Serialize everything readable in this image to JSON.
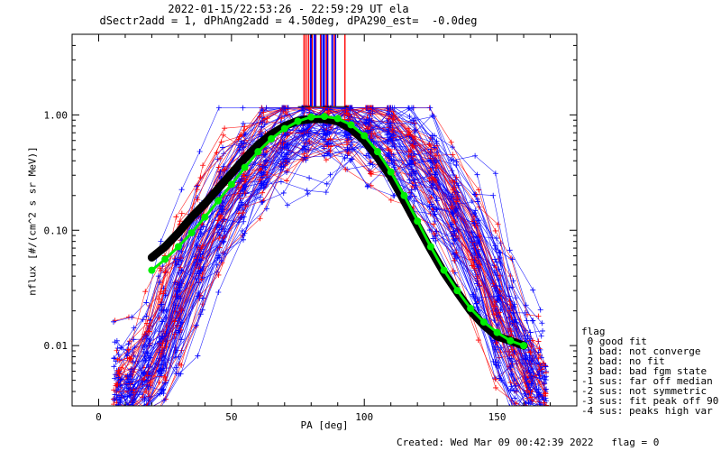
{
  "chart_data": {
    "type": "scatter",
    "title": "2022-01-15/22:53:26 - 22:59:29 UT ela",
    "subtitle": "dSectr2add = 1, dPhAng2add = 4.50deg, dPA290_est=  -0.0deg",
    "xlabel": "PA [deg]",
    "ylabel": "nflux [#/(cm^2 s sr MeV)]",
    "xlim": [
      -10,
      180
    ],
    "ylim": [
      0.003,
      5
    ],
    "yscale": "log",
    "x_ticks": [
      "0",
      "50",
      "100",
      "150"
    ],
    "y_ticks": [
      "0.01",
      "0.10",
      "1.00"
    ],
    "grid": false,
    "colors": {
      "bad_flux": "#ff0000",
      "good_flux": "#0000ff",
      "fit": "#00ee00",
      "median": "#000000"
    },
    "series": [
      {
        "color": "green",
        "x": [
          20,
          25,
          30,
          35,
          40,
          45,
          50,
          55,
          60,
          65,
          70,
          75,
          80,
          85,
          90,
          95,
          100,
          105,
          110,
          115,
          120,
          125,
          130,
          135,
          140,
          145,
          150,
          155,
          160
        ],
        "y": [
          0.045,
          0.056,
          0.072,
          0.095,
          0.13,
          0.18,
          0.25,
          0.35,
          0.48,
          0.62,
          0.76,
          0.88,
          0.96,
          0.97,
          0.93,
          0.82,
          0.66,
          0.48,
          0.32,
          0.2,
          0.12,
          0.072,
          0.045,
          0.03,
          0.021,
          0.016,
          0.013,
          0.011,
          0.01
        ]
      },
      {
        "color": "black",
        "x": [
          20,
          25,
          30,
          35,
          40,
          45,
          50,
          55,
          60,
          65,
          70,
          75,
          80,
          85,
          90,
          95,
          100,
          105,
          110,
          115,
          120,
          125,
          130,
          135,
          140,
          145,
          150,
          155,
          160
        ],
        "y": [
          0.058,
          0.072,
          0.095,
          0.13,
          0.17,
          0.23,
          0.31,
          0.42,
          0.55,
          0.68,
          0.8,
          0.89,
          0.92,
          0.92,
          0.88,
          0.76,
          0.6,
          0.43,
          0.29,
          0.18,
          0.11,
          0.068,
          0.043,
          0.029,
          0.02,
          0.015,
          0.012,
          0.011,
          0.01
        ]
      }
    ],
    "legend": {
      "title": "flag",
      "entries": [
        " 0 good fit",
        " 1 bad: not converge",
        " 2 bad: no fit",
        " 3 bad: bad fgm state",
        "-1 sus: far off median",
        "-2 sus: not symmetric",
        "-3 sus: fit peak off 90",
        "-4 sus: peaks high var"
      ]
    },
    "footer": "Created: Wed Mar 09 00:42:39 2022   flag = 0"
  }
}
